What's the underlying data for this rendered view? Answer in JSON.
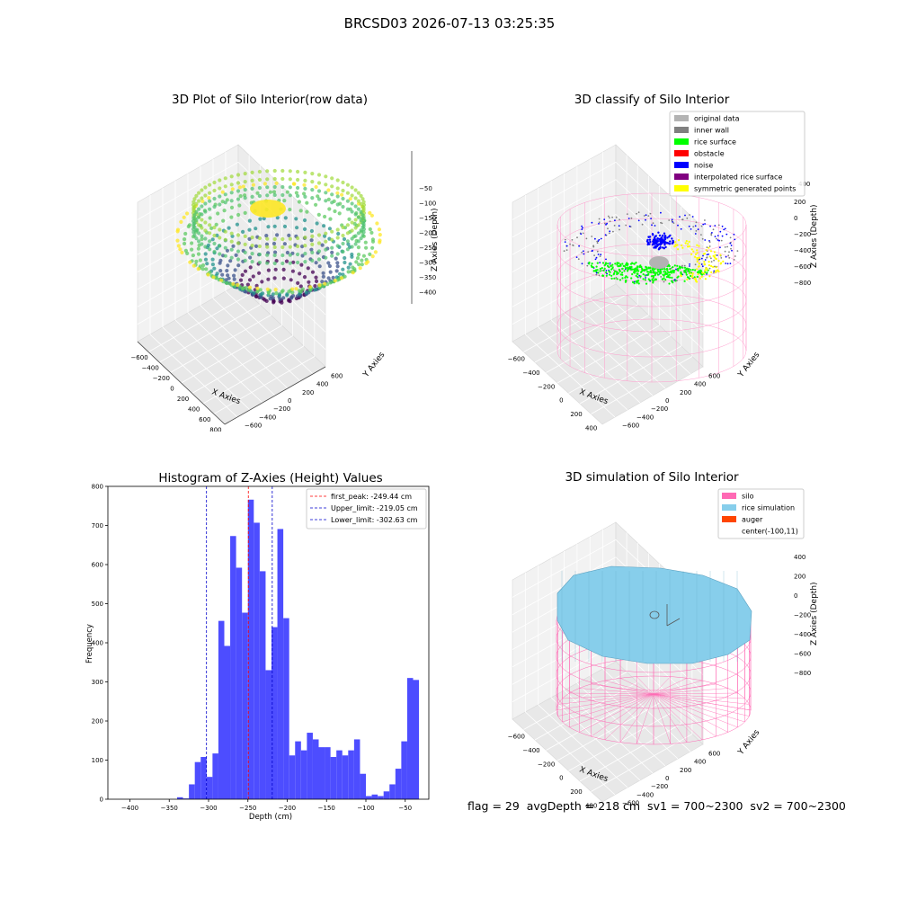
{
  "suptitle": "BRCSD03 2026-07-13 03:25:35",
  "footer": "flag = 29  avgDepth = 218 cm  sv1 = 700~2300  sv2 = 700~2300",
  "colors": {
    "hist_bar": "#4d4dff",
    "first_peak": "#ff0000",
    "limits": "#0000cc",
    "silo": "#ff69b4",
    "rice_sim": "#87ceeb",
    "auger": "#ff4500",
    "original": "#b3b3b3",
    "inner_wall": "#808080",
    "rice_surface": "#00ff00",
    "obstacle": "#ff0000",
    "noise": "#0000ff",
    "interp": "#800080",
    "sym": "#ffff00"
  },
  "panel1": {
    "title": "3D Plot of Silo Interior(row data)",
    "xlabel": "X Axies",
    "ylabel": "Y Axies",
    "zlabel": "Z Axies (Depth)",
    "xticks": [
      "−600",
      "−400",
      "−200",
      "0",
      "200",
      "400",
      "600",
      "800"
    ],
    "yticks": [
      "−600",
      "−400",
      "−200",
      "0",
      "200",
      "400",
      "600"
    ],
    "zticks": [
      "−50",
      "−100",
      "−150",
      "−200",
      "−250",
      "−300",
      "−350",
      "−400"
    ]
  },
  "panel2": {
    "title": "3D classify of Silo Interior",
    "xlabel": "X Axies",
    "ylabel": "Y Axies",
    "zlabel": "Z Axies (Depth)",
    "xticks": [
      "−600",
      "−400",
      "−200",
      "0",
      "200",
      "400"
    ],
    "yticks": [
      "−600",
      "−400",
      "−200",
      "0",
      "200",
      "400",
      "600"
    ],
    "zticks": [
      "200",
      "0",
      "−200",
      "−400",
      "−600",
      "−800"
    ],
    "ztop": "400",
    "legend": [
      {
        "label": "original data",
        "color": "#b3b3b3"
      },
      {
        "label": "inner wall",
        "color": "#808080"
      },
      {
        "label": "rice surface",
        "color": "#00ff00"
      },
      {
        "label": "obstacle",
        "color": "#ff0000"
      },
      {
        "label": "noise",
        "color": "#0000ff"
      },
      {
        "label": "interpolated rice surface",
        "color": "#800080"
      },
      {
        "label": "symmetric generated points",
        "color": "#ffff00"
      }
    ]
  },
  "panel4": {
    "title": "3D simulation of Silo Interior",
    "xlabel": "X Axies",
    "ylabel": "Y Axies",
    "zlabel": "Z Axies (Depth)",
    "xticks": [
      "−600",
      "−400",
      "−200",
      "0",
      "200",
      "400"
    ],
    "yticks": [
      "−600",
      "−400",
      "−200",
      "0",
      "200",
      "400",
      "600"
    ],
    "zticks": [
      "400",
      "200",
      "0",
      "−200",
      "−400",
      "−600",
      "−800"
    ],
    "legend": [
      {
        "label": "silo",
        "color": "#ff69b4"
      },
      {
        "label": "rice simulation",
        "color": "#87ceeb"
      },
      {
        "label": "auger",
        "color": "#ff4500"
      },
      {
        "label": "center(-100,11)",
        "color": ""
      }
    ]
  },
  "chart_data": {
    "type": "bar",
    "title": "Histogram of Z-Axies (Height) Values",
    "xlabel": "Depth (cm)",
    "ylabel": "Frequency",
    "xlim": [
      -428,
      -20
    ],
    "ylim": [
      0,
      800
    ],
    "xticks": [
      -400,
      -350,
      -300,
      -250,
      -200,
      -150,
      -100,
      -50
    ],
    "yticks": [
      0,
      100,
      200,
      300,
      400,
      500,
      600,
      700,
      800
    ],
    "bin_width": 7.5,
    "bin_start": -340,
    "values": [
      5,
      2,
      38,
      95,
      108,
      57,
      117,
      456,
      392,
      673,
      592,
      477,
      766,
      707,
      583,
      330,
      440,
      691,
      463,
      112,
      148,
      125,
      170,
      153,
      133,
      133,
      108,
      125,
      112,
      125,
      153,
      65,
      8,
      12,
      8,
      20,
      38,
      78,
      148,
      310,
      305
    ],
    "vlines": [
      {
        "label": "first_peak: -249.44 cm",
        "x": -249.44,
        "color": "#ff0000"
      },
      {
        "label": "Upper_limit: -219.05 cm",
        "x": -219.05,
        "color": "#0000cc"
      },
      {
        "label": "Lower_limit: -302.63 cm",
        "x": -302.63,
        "color": "#0000cc"
      }
    ]
  }
}
